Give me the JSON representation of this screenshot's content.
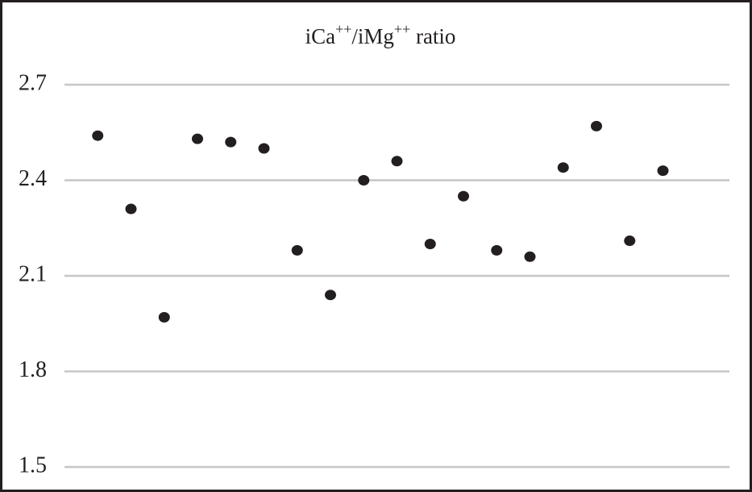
{
  "chart_data": {
    "type": "scatter",
    "title": "iCa++/iMg++ ratio",
    "x": [
      1,
      2,
      3,
      4,
      5,
      6,
      7,
      8,
      9,
      10,
      11,
      12,
      13,
      14,
      15,
      16,
      17,
      18
    ],
    "values": [
      2.54,
      2.31,
      1.97,
      2.53,
      2.52,
      2.5,
      2.18,
      2.04,
      2.4,
      2.46,
      2.2,
      2.35,
      2.18,
      2.16,
      2.44,
      2.57,
      2.21,
      2.43
    ],
    "color": "#231f20",
    "xlim": [
      0,
      20
    ],
    "ylim": [
      1.5,
      2.7
    ],
    "yticks": [
      1.5,
      1.8,
      2.1,
      2.4,
      2.7
    ],
    "grid": true
  }
}
